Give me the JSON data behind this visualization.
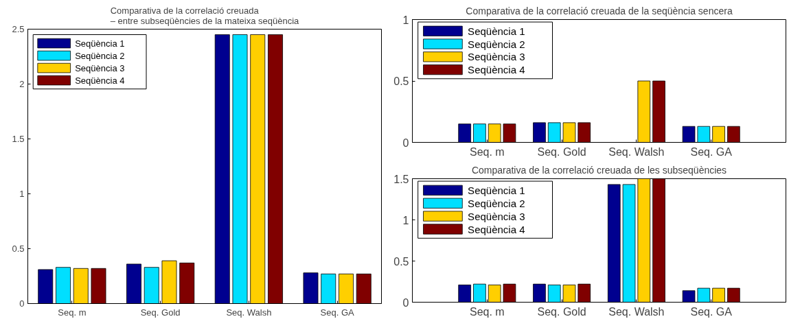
{
  "chart_data": [
    {
      "type": "bar",
      "title": "Comparativa de la correlació creuada\n– entre subseqüències de la mateixa seqüència",
      "categories": [
        "Seq. m",
        "Seq. Gold",
        "Seq. Walsh",
        "Seq. GA"
      ],
      "ylim": [
        0,
        2.5
      ],
      "yticks": [
        0,
        0.5,
        1,
        1.5,
        2,
        2.5
      ],
      "grid": false,
      "legend": "top left",
      "series": [
        {
          "name": "Seqüència 1",
          "color": "#00008f",
          "values": [
            0.31,
            0.36,
            2.45,
            0.28
          ]
        },
        {
          "name": "Seqüència 2",
          "color": "#00dfff",
          "values": [
            0.33,
            0.33,
            2.45,
            0.27
          ]
        },
        {
          "name": "Seqüència 3",
          "color": "#ffcf00",
          "values": [
            0.32,
            0.39,
            2.45,
            0.27
          ]
        },
        {
          "name": "Seqüència 4",
          "color": "#800000",
          "values": [
            0.32,
            0.37,
            2.45,
            0.27
          ]
        }
      ]
    },
    {
      "type": "bar",
      "title": "Comparativa de la correlació creuada de la seqüència sencera",
      "categories": [
        "Seq. m",
        "Seq. Gold",
        "Seq. Walsh",
        "Seq. GA"
      ],
      "ylim": [
        0,
        1
      ],
      "yticks": [
        0,
        0.5,
        1
      ],
      "grid": false,
      "legend": "top left",
      "series": [
        {
          "name": "Seqüència 1",
          "color": "#00008f",
          "values": [
            0.15,
            0.16,
            0,
            0.13
          ]
        },
        {
          "name": "Seqüència 2",
          "color": "#00dfff",
          "values": [
            0.15,
            0.16,
            0,
            0.13
          ]
        },
        {
          "name": "Seqüència 3",
          "color": "#ffcf00",
          "values": [
            0.15,
            0.16,
            0.5,
            0.13
          ]
        },
        {
          "name": "Seqüència 4",
          "color": "#800000",
          "values": [
            0.15,
            0.16,
            0.5,
            0.13
          ]
        }
      ]
    },
    {
      "type": "bar",
      "title": "Comparativa de la correlació creuada de les subseqüències",
      "categories": [
        "Seq. m",
        "Seq. Gold",
        "Seq. Walsh",
        "Seq. GA"
      ],
      "ylim": [
        0,
        1.5
      ],
      "yticks": [
        0,
        0.5,
        1,
        1.5
      ],
      "grid": false,
      "legend": "top left",
      "series": [
        {
          "name": "Seqüència 1",
          "color": "#00008f",
          "values": [
            0.21,
            0.22,
            1.43,
            0.14
          ]
        },
        {
          "name": "Seqüència 2",
          "color": "#00dfff",
          "values": [
            0.22,
            0.21,
            1.43,
            0.17
          ]
        },
        {
          "name": "Seqüència 3",
          "color": "#ffcf00",
          "values": [
            0.21,
            0.21,
            1.5,
            0.17
          ]
        },
        {
          "name": "Seqüència 4",
          "color": "#800000",
          "values": [
            0.22,
            0.22,
            1.5,
            0.17
          ]
        }
      ]
    }
  ]
}
